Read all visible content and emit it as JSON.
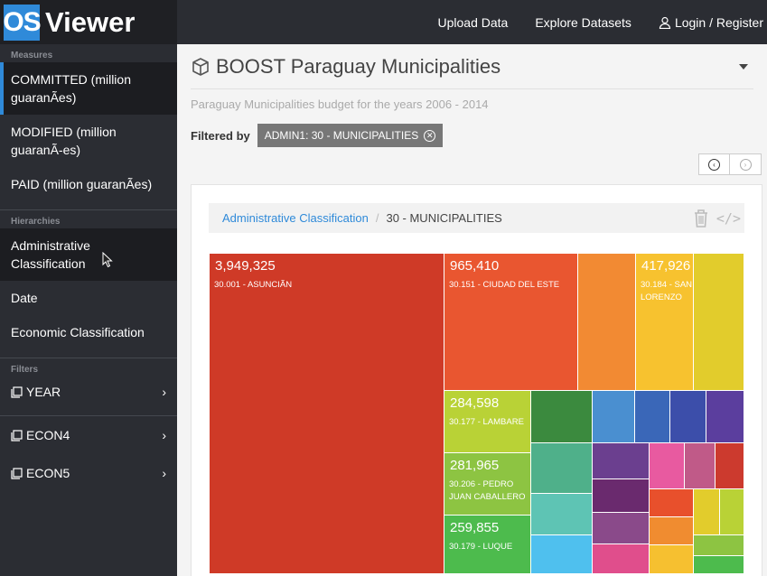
{
  "logo": {
    "badge": "OS",
    "text": "Viewer"
  },
  "nav": {
    "upload": "Upload Data",
    "explore": "Explore Datasets",
    "login": "Login / Register"
  },
  "sidebar": {
    "measures_heading": "Measures",
    "measures": [
      {
        "label": "COMMITTED (million guaranÃes)",
        "active": true
      },
      {
        "label": "MODIFIED (million guaranÃ-es)"
      },
      {
        "label": "PAID (million guaranÃes)"
      }
    ],
    "hierarchies_heading": "Hierarchies",
    "hierarchies": [
      {
        "label": "Administrative Classification"
      },
      {
        "label": "Date"
      },
      {
        "label": "Economic Classification"
      }
    ],
    "filters_heading": "Filters",
    "filters": [
      {
        "label": "YEAR"
      },
      {
        "label": "ECON4"
      },
      {
        "label": "ECON5"
      }
    ]
  },
  "page": {
    "title": "BOOST Paraguay Municipalities",
    "subtitle": "Paraguay Municipalities budget for the years 2006 - 2014",
    "filtered_by_label": "Filtered by",
    "filter_chip": "ADMIN1: 30 - MUNICIPALITIES"
  },
  "breadcrumb": {
    "link": "Administrative Classification",
    "separator": "/",
    "current": "30 - MUNICIPALITIES"
  },
  "colors": {
    "sidebar": "#2b2d33",
    "accent": "#2f8ad9",
    "chip": "#777777"
  },
  "treemap": {
    "tiles": [
      {
        "value": "3,949,325",
        "name": "30.001 - ASUNCIÃN",
        "color": "#cf3a27"
      },
      {
        "value": "965,410",
        "name": "30.151 - CIUDAD DEL ESTE",
        "color": "#e95630"
      },
      {
        "value": "",
        "name": "",
        "color": "#f28a33"
      },
      {
        "value": "417,926",
        "name": "30.184 - SAN LORENZO",
        "color": "#f7c22f"
      },
      {
        "value": "",
        "name": "",
        "color": "#e2cc2c"
      },
      {
        "value": "284,598",
        "name": "30.177 - LAMBARE",
        "color": "#b9d236"
      },
      {
        "value": "281,965",
        "name": "30.206 - PEDRO JUAN CABALLERO",
        "color": "#8dc442"
      },
      {
        "value": "259,855",
        "name": "30.179 - LUQUE",
        "color": "#4dbb4d"
      }
    ]
  }
}
